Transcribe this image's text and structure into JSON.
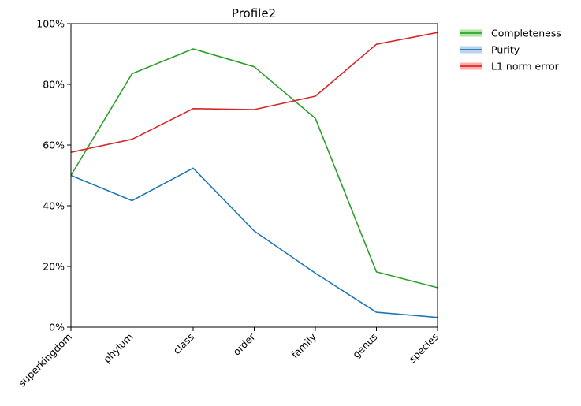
{
  "chart_data": {
    "type": "line",
    "title": "Profile2",
    "xlabel": "",
    "ylabel": "",
    "categories": [
      "superkingdom",
      "phylum",
      "class",
      "order",
      "family",
      "genus",
      "species"
    ],
    "ylim": [
      0,
      100
    ],
    "y_ticks": [
      "0%",
      "20%",
      "40%",
      "60%",
      "80%",
      "100%"
    ],
    "y_tick_values": [
      0,
      20,
      40,
      60,
      80,
      100
    ],
    "legend_position": "outside-top-right",
    "series": [
      {
        "name": "Completeness",
        "color": "#2ca02c",
        "band_color": "#98df8a",
        "values": [
          50,
          83.5,
          91.7,
          85.8,
          68.8,
          18.2,
          13.0
        ]
      },
      {
        "name": "Purity",
        "color": "#1f77b4",
        "band_color": "#aec7e8",
        "values": [
          50,
          41.7,
          52.4,
          31.7,
          17.8,
          4.9,
          3.2
        ]
      },
      {
        "name": "L1 norm error",
        "color": "#d62728",
        "band_color": "#ff9896",
        "values": [
          57.6,
          61.9,
          72.0,
          71.7,
          76.1,
          93.2,
          97.1
        ]
      }
    ]
  }
}
